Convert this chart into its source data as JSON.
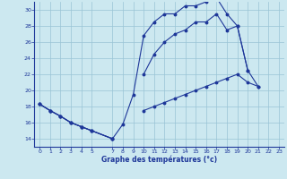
{
  "xlabel": "Graphe des températures (°c)",
  "ylim": [
    13,
    31
  ],
  "xlim": [
    -0.5,
    23.5
  ],
  "yticks": [
    14,
    16,
    18,
    20,
    22,
    24,
    26,
    28,
    30
  ],
  "xticks": [
    0,
    1,
    2,
    3,
    4,
    5,
    7,
    8,
    9,
    10,
    11,
    12,
    13,
    14,
    15,
    16,
    17,
    18,
    19,
    20,
    21,
    22,
    23
  ],
  "bg_color": "#cce8f0",
  "line_color": "#1e3799",
  "grid_color": "#99c4d5",
  "lines": [
    {
      "x": [
        0,
        1,
        2,
        3,
        4,
        5,
        7,
        8,
        9,
        10,
        11,
        12,
        13,
        14,
        15,
        16,
        17,
        18,
        19,
        20,
        21,
        22,
        23
      ],
      "y": [
        18.3,
        17.5,
        16.8,
        16.0,
        15.5,
        15.0,
        14.0,
        15.8,
        19.5,
        26.8,
        28.5,
        29.5,
        29.5,
        30.5,
        30.5,
        31.0,
        31.5,
        29.5,
        28.0,
        22.5,
        20.5,
        null,
        null
      ]
    },
    {
      "x": [
        0,
        1,
        2,
        3,
        4,
        5,
        7,
        8,
        9,
        10,
        11,
        12,
        13,
        14,
        15,
        16,
        17,
        18,
        19,
        20,
        21,
        22,
        23
      ],
      "y": [
        18.3,
        17.5,
        16.8,
        16.0,
        15.5,
        15.0,
        14.0,
        null,
        null,
        22.0,
        24.5,
        26.0,
        27.0,
        27.5,
        28.5,
        28.5,
        29.5,
        27.5,
        28.0,
        22.5,
        null,
        null,
        null
      ]
    },
    {
      "x": [
        0,
        1,
        2,
        3,
        4,
        5,
        7,
        8,
        9,
        10,
        11,
        12,
        13,
        14,
        15,
        16,
        17,
        18,
        19,
        20,
        21,
        22,
        23
      ],
      "y": [
        18.3,
        17.5,
        16.8,
        16.0,
        15.5,
        15.0,
        14.0,
        null,
        null,
        17.5,
        18.0,
        18.5,
        19.0,
        19.5,
        20.0,
        20.5,
        21.0,
        21.5,
        22.0,
        21.0,
        20.5,
        null,
        null
      ]
    }
  ]
}
